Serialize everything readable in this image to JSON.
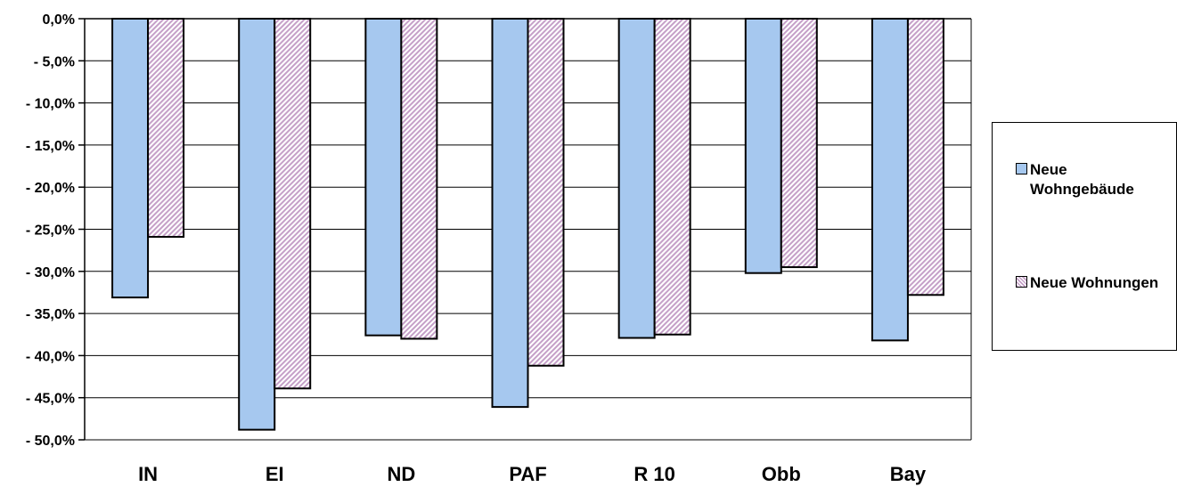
{
  "chart_data": {
    "type": "bar",
    "categories": [
      "IN",
      "EI",
      "ND",
      "PAF",
      "R 10",
      "Obb",
      "Bay"
    ],
    "series": [
      {
        "name": "Neue Wohngebäude",
        "values": [
          -33.1,
          -48.8,
          -37.6,
          -46.1,
          -37.9,
          -30.2,
          -38.2
        ],
        "color": "#a6c8ef"
      },
      {
        "name": "Neue Wohnungen",
        "values": [
          -25.9,
          -43.9,
          -38.0,
          -41.2,
          -37.5,
          -29.5,
          -32.8
        ],
        "color": "#c5a0c8"
      }
    ],
    "ylim": [
      -50,
      0
    ],
    "yticks": [
      0,
      -5,
      -10,
      -15,
      -20,
      -25,
      -30,
      -35,
      -40,
      -45,
      -50
    ],
    "ytick_labels": [
      "0,0%",
      "- 5,0%",
      "- 10,0%",
      "- 15,0%",
      "- 20,0%",
      "- 25,0%",
      "- 30,0%",
      "- 35,0%",
      "- 40,0%",
      "- 45,0%",
      "- 50,0%"
    ],
    "grid": true,
    "legend_position": "right",
    "title": "",
    "xlabel": "",
    "ylabel": ""
  }
}
